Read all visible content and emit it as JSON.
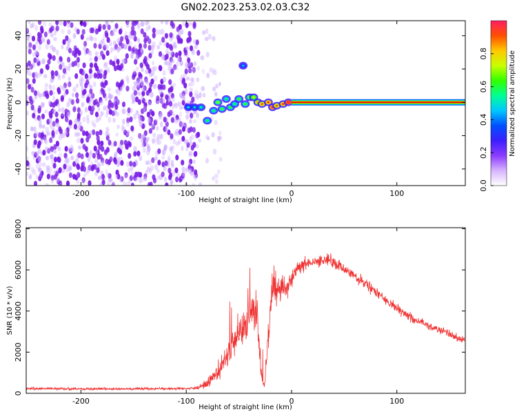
{
  "title": "GN02.2023.253.02.03.C32",
  "colors": {
    "snr_line": "#f03232",
    "spectral_ridge": "#e00000",
    "noise": "#7a1ee6",
    "colorbar": [
      "#ffffff",
      "#d7b4ff",
      "#8c3cff",
      "#3c1eff",
      "#0050ff",
      "#00c8ff",
      "#00ff96",
      "#32ff00",
      "#c8ff00",
      "#ffc800",
      "#ff5000",
      "#ff1e64"
    ]
  },
  "chart_data": [
    {
      "type": "heatmap",
      "name": "spectrogram",
      "xlabel": "Height of straight line (km)",
      "ylabel": "Frequency (Hz)",
      "xlim": [
        -252,
        165
      ],
      "ylim": [
        -50,
        49
      ],
      "xticks": [
        -200,
        -100,
        0,
        100
      ],
      "xtick_labels": [
        "-200",
        "-100",
        "0",
        "100"
      ],
      "yticks": [
        -40,
        -20,
        0,
        20,
        40
      ],
      "ytick_labels": [
        "-40",
        "-20",
        "0",
        "20",
        "40"
      ],
      "colorbar": {
        "label": "Normalized spectral amplitude",
        "range": [
          0,
          1
        ],
        "ticks": [
          0.0,
          0.2,
          0.4,
          0.6,
          0.8
        ],
        "tick_labels": [
          "0.0",
          "0.2",
          "0.4",
          "0.6",
          "0.8"
        ]
      },
      "features": {
        "noise_region_x": [
          -252,
          -88
        ],
        "ridge": {
          "frequency_hz": 0,
          "x_range": [
            0,
            165
          ],
          "amplitude": 1.0
        },
        "transition_blobs": [
          {
            "x": -98,
            "f": -3,
            "amp": 0.35
          },
          {
            "x": -92,
            "f": -3,
            "amp": 0.35
          },
          {
            "x": -86,
            "f": -3,
            "amp": 0.4
          },
          {
            "x": -80,
            "f": -11,
            "amp": 0.45
          },
          {
            "x": -74,
            "f": -5,
            "amp": 0.45
          },
          {
            "x": -70,
            "f": 0,
            "amp": 0.55
          },
          {
            "x": -66,
            "f": -4,
            "amp": 0.5
          },
          {
            "x": -62,
            "f": 2,
            "amp": 0.45
          },
          {
            "x": -58,
            "f": -3,
            "amp": 0.5
          },
          {
            "x": -54,
            "f": -1,
            "amp": 0.45
          },
          {
            "x": -50,
            "f": 2,
            "amp": 0.5
          },
          {
            "x": -46,
            "f": 22,
            "amp": 0.3
          },
          {
            "x": -44,
            "f": -1,
            "amp": 0.5
          },
          {
            "x": -40,
            "f": 3,
            "amp": 0.55
          },
          {
            "x": -36,
            "f": 3,
            "amp": 0.6
          },
          {
            "x": -32,
            "f": 0,
            "amp": 0.7
          },
          {
            "x": -28,
            "f": -1,
            "amp": 0.75
          },
          {
            "x": -22,
            "f": 0,
            "amp": 0.8
          },
          {
            "x": -18,
            "f": -3,
            "amp": 0.85
          },
          {
            "x": -14,
            "f": -2,
            "amp": 0.75
          },
          {
            "x": -8,
            "f": -1,
            "amp": 0.8
          },
          {
            "x": -3,
            "f": 0,
            "amp": 0.9
          }
        ]
      }
    },
    {
      "type": "line",
      "name": "snr",
      "xlabel": "Height of straight line (km)",
      "ylabel": "SNR (10 * v/v)",
      "xlim": [
        -252,
        165
      ],
      "ylim": [
        0,
        8050
      ],
      "xticks": [
        -200,
        -100,
        0,
        100
      ],
      "xtick_labels": [
        "-200",
        "-100",
        "0",
        "100"
      ],
      "yticks": [
        0,
        2000,
        4000,
        6000,
        8000
      ],
      "ytick_labels": [
        "0",
        "2000",
        "4000",
        "6000",
        "8000"
      ],
      "envelope": {
        "x": [
          -252,
          -200,
          -150,
          -100,
          -90,
          -80,
          -70,
          -60,
          -50,
          -42,
          -36,
          -32,
          -29,
          -26,
          -22,
          -18,
          -14,
          -10,
          -6,
          -3,
          0,
          5,
          10,
          20,
          30,
          40,
          50,
          60,
          70,
          80,
          90,
          100,
          110,
          120,
          130,
          140,
          150,
          160,
          165
        ],
        "mean": [
          230,
          220,
          220,
          230,
          260,
          450,
          1100,
          2000,
          2800,
          3600,
          4300,
          3300,
          1000,
          300,
          2600,
          5300,
          5000,
          5200,
          5100,
          5200,
          5600,
          6100,
          6200,
          6400,
          6500,
          6400,
          6100,
          5700,
          5300,
          4900,
          4500,
          4100,
          3800,
          3500,
          3300,
          3100,
          2900,
          2600,
          2600
        ],
        "noise": [
          80,
          80,
          80,
          80,
          100,
          350,
          700,
          900,
          1100,
          1400,
          1500,
          1300,
          500,
          200,
          1100,
          1200,
          1100,
          900,
          700,
          600,
          500,
          450,
          450,
          400,
          400,
          400,
          380,
          350,
          330,
          320,
          300,
          300,
          280,
          270,
          260,
          250,
          250,
          240,
          240
        ]
      }
    }
  ]
}
